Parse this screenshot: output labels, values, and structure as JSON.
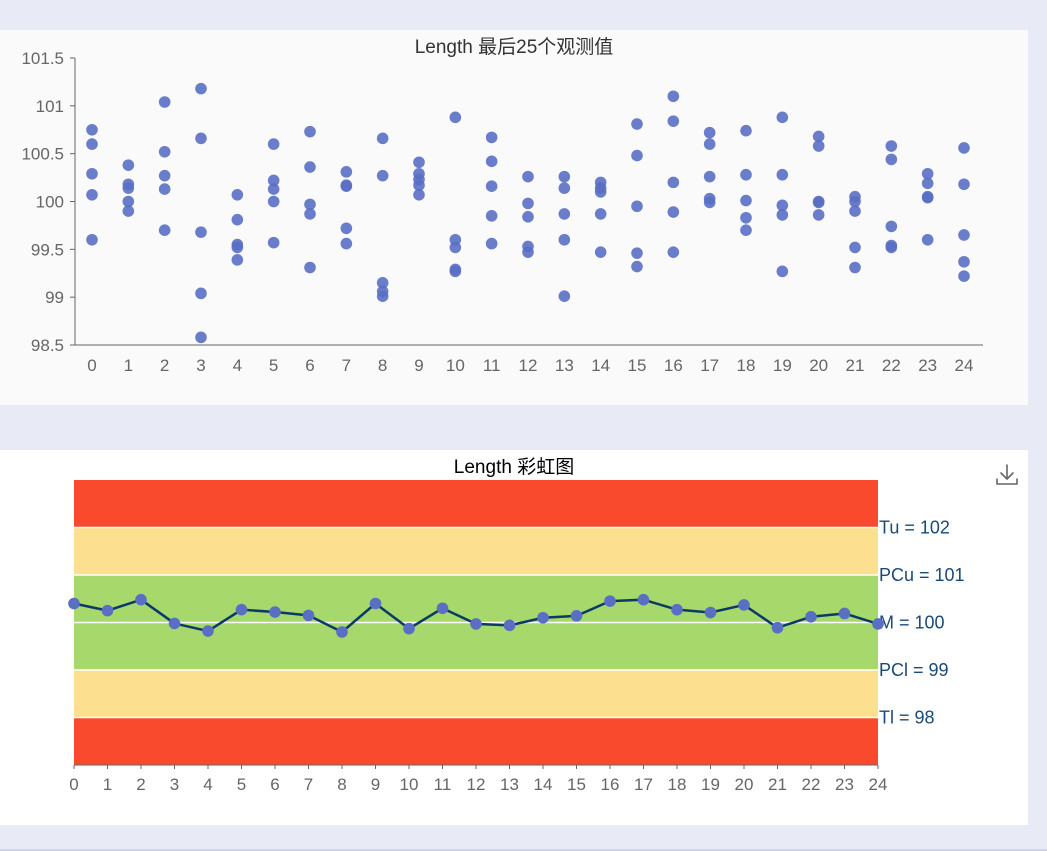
{
  "chart_data": [
    {
      "type": "scatter",
      "title": "Length 最后25个观测值",
      "xlabel": "",
      "ylabel": "",
      "categories": [
        "0",
        "1",
        "2",
        "3",
        "4",
        "5",
        "6",
        "7",
        "8",
        "9",
        "10",
        "11",
        "12",
        "13",
        "14",
        "15",
        "16",
        "17",
        "18",
        "19",
        "20",
        "21",
        "22",
        "23",
        "24"
      ],
      "ylim": [
        98.5,
        101.5
      ],
      "yticks": [
        "98.5",
        "99",
        "99.5",
        "100",
        "100.5",
        "101",
        "101.5"
      ],
      "point_color": "#5a6fc4",
      "points": [
        [
          99.6,
          100.07,
          100.29,
          100.6,
          100.75
        ],
        [
          99.9,
          100.0,
          100.14,
          100.18,
          100.38
        ],
        [
          99.7,
          100.13,
          100.27,
          100.52,
          101.04
        ],
        [
          98.58,
          99.04,
          99.68,
          100.66,
          101.18
        ],
        [
          99.39,
          99.52,
          99.55,
          99.81,
          100.07
        ],
        [
          99.57,
          100.0,
          100.13,
          100.22,
          100.6
        ],
        [
          99.31,
          99.87,
          99.97,
          100.36,
          100.73
        ],
        [
          99.56,
          99.72,
          100.16,
          100.17,
          100.31
        ],
        [
          99.01,
          99.06,
          99.15,
          100.27,
          100.66
        ],
        [
          100.07,
          100.17,
          100.23,
          100.29,
          100.41
        ],
        [
          99.27,
          99.29,
          99.52,
          99.6,
          100.88
        ],
        [
          99.56,
          99.85,
          100.16,
          100.42,
          100.67
        ],
        [
          99.47,
          99.53,
          99.84,
          99.98,
          100.26
        ],
        [
          99.01,
          99.6,
          99.87,
          100.14,
          100.26
        ],
        [
          99.47,
          99.87,
          100.1,
          100.14,
          100.2
        ],
        [
          99.32,
          99.46,
          99.95,
          100.48,
          100.81
        ],
        [
          99.47,
          99.89,
          100.2,
          100.84,
          101.1
        ],
        [
          99.99,
          100.03,
          100.26,
          100.6,
          100.72
        ],
        [
          99.7,
          99.83,
          100.01,
          100.28,
          100.74
        ],
        [
          99.27,
          99.86,
          99.96,
          100.28,
          100.88
        ],
        [
          99.86,
          99.99,
          100.0,
          100.58,
          100.68
        ],
        [
          99.31,
          99.52,
          99.9,
          100.0,
          100.05
        ],
        [
          99.52,
          99.54,
          99.74,
          100.44,
          100.58
        ],
        [
          99.6,
          100.04,
          100.05,
          100.19,
          100.29
        ],
        [
          99.22,
          99.37,
          99.65,
          100.18,
          100.56
        ]
      ]
    },
    {
      "type": "line",
      "title": "Length 彩虹图",
      "xlabel": "",
      "ylabel": "",
      "categories": [
        "0",
        "1",
        "2",
        "3",
        "4",
        "5",
        "6",
        "7",
        "8",
        "9",
        "10",
        "11",
        "12",
        "13",
        "14",
        "15",
        "16",
        "17",
        "18",
        "19",
        "20",
        "21",
        "22",
        "23",
        "24"
      ],
      "ylim": [
        97,
        103
      ],
      "values": [
        100.4,
        100.25,
        100.48,
        99.98,
        99.82,
        100.27,
        100.22,
        100.15,
        99.8,
        100.4,
        99.87,
        100.3,
        99.97,
        99.94,
        100.1,
        100.14,
        100.45,
        100.48,
        100.27,
        100.21,
        100.37,
        99.89,
        100.12,
        100.19,
        99.97
      ],
      "line_color": "#0c3a66",
      "point_color": "#5a6fc4",
      "bands": [
        {
          "from": 102,
          "to": 103,
          "color": "#fa4a2d"
        },
        {
          "from": 101,
          "to": 102,
          "color": "#fde08f"
        },
        {
          "from": 99,
          "to": 101,
          "color": "#a6d86c"
        },
        {
          "from": 98,
          "to": 99,
          "color": "#fde08f"
        },
        {
          "from": 97,
          "to": 98,
          "color": "#fa4a2d"
        }
      ],
      "limit_lines": [
        {
          "value": 102,
          "label": "Tu = 102"
        },
        {
          "value": 101,
          "label": "PCu = 101"
        },
        {
          "value": 100,
          "label": "M = 100"
        },
        {
          "value": 99,
          "label": "PCl = 99"
        },
        {
          "value": 98,
          "label": "Tl = 98"
        }
      ]
    }
  ],
  "toolbar": {
    "download_icon": "download-icon"
  }
}
